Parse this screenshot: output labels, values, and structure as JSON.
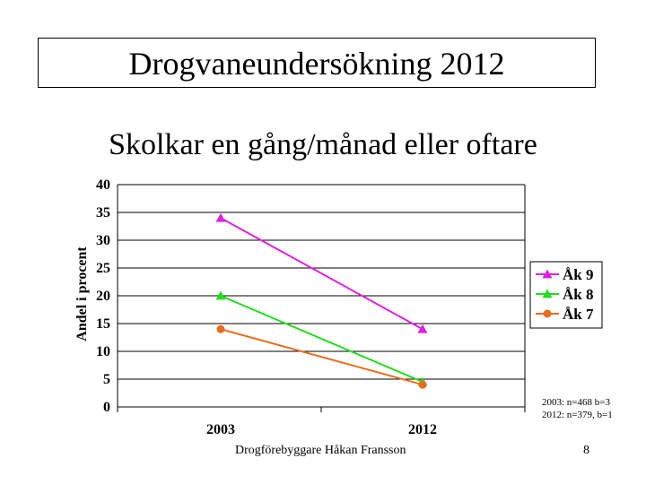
{
  "slide": {
    "title": "Drogvaneundersökning 2012",
    "footer_left": "Drogförebyggare Håkan Fransson",
    "page_number": "8",
    "notes": [
      "2003: n=468 b=3",
      "2012: n=379, b=1"
    ]
  },
  "chart_data": {
    "type": "line",
    "title": "Skolkar en gång/månad eller oftare",
    "xlabel": "",
    "ylabel": "Andel i procent",
    "categories": [
      "2003",
      "2012"
    ],
    "ylim": [
      0,
      40
    ],
    "yticks": [
      "0",
      "5",
      "10",
      "15",
      "20",
      "25",
      "30",
      "35",
      "40"
    ],
    "grid": true,
    "legend_position": "right",
    "series": [
      {
        "name": "Åk 9",
        "values": [
          34,
          14
        ],
        "color": "#e020e0",
        "marker": "triangle"
      },
      {
        "name": "Åk 8",
        "values": [
          20,
          4.5
        ],
        "color": "#22dd22",
        "marker": "triangle"
      },
      {
        "name": "Åk 7",
        "values": [
          14,
          4
        ],
        "color": "#e86e1c",
        "marker": "circle"
      }
    ]
  }
}
